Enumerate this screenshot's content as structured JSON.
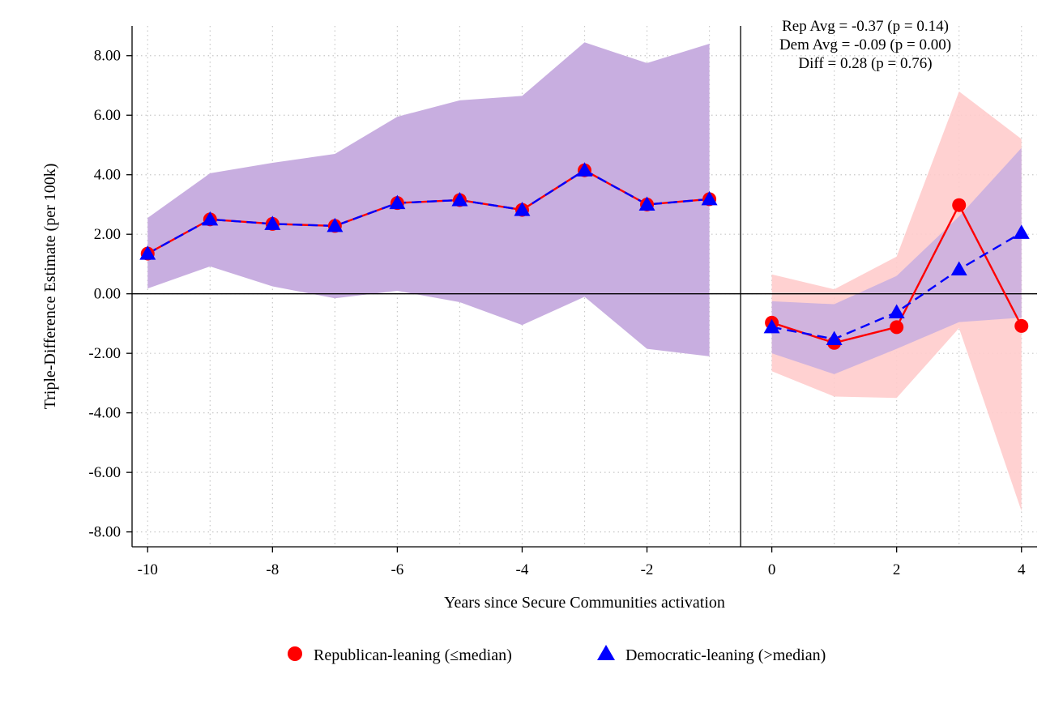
{
  "chart_data": {
    "type": "line",
    "xlabel": "Years since Secure Communities activation",
    "ylabel": "Triple-Difference Estimate (per 100k)",
    "xlim": [
      -10.25,
      4.25
    ],
    "ylim": [
      -8.5,
      9.0
    ],
    "x_ticks": [
      -10,
      -8,
      -6,
      -4,
      -2,
      0,
      2,
      4
    ],
    "x_tick_labels": [
      "-10",
      "-8",
      "-6",
      "-4",
      "-2",
      "0",
      "2",
      "4"
    ],
    "y_ticks": [
      -8,
      -6,
      -4,
      -2,
      0,
      2,
      4,
      6,
      8
    ],
    "y_tick_labels": [
      "-8.00",
      "-6.00",
      "-4.00",
      "-2.00",
      "0.00",
      "2.00",
      "4.00",
      "6.00",
      "8.00"
    ],
    "grid": true,
    "reference_lines": {
      "y": 0,
      "x": -0.5
    },
    "annotations": [
      "Rep Avg = -0.37 (p = 0.14)",
      "Dem Avg = -0.09 (p = 0.00)",
      "Diff = 0.28 (p = 0.76)"
    ],
    "legend_position": "bottom",
    "series": [
      {
        "name": "Republican-leaning (≤median)",
        "color": "#ff0000",
        "marker": "circle",
        "band_color": "#ffcccc",
        "pre": {
          "x": [
            -10,
            -9,
            -8,
            -7,
            -6,
            -5,
            -4,
            -3,
            -2,
            -1
          ],
          "y": [
            1.35,
            2.5,
            2.35,
            2.28,
            3.05,
            3.15,
            2.82,
            4.15,
            3.0,
            3.18
          ]
        },
        "post": {
          "x": [
            0,
            1,
            2,
            3,
            4
          ],
          "y": [
            -0.97,
            -1.65,
            -1.12,
            2.98,
            -1.08
          ],
          "ci_lower": [
            -2.6,
            -3.45,
            -3.5,
            -1.15,
            -7.3
          ],
          "ci_upper": [
            0.65,
            0.15,
            1.25,
            6.8,
            5.2
          ]
        }
      },
      {
        "name": "Democratic-leaning (>median)",
        "color": "#0000ff",
        "marker": "triangle",
        "band_color": "#c8aee0",
        "pre": {
          "x": [
            -10,
            -9,
            -8,
            -7,
            -6,
            -5,
            -4,
            -3,
            -2,
            -1
          ],
          "y": [
            1.35,
            2.5,
            2.35,
            2.28,
            3.05,
            3.15,
            2.82,
            4.15,
            3.0,
            3.18
          ],
          "ci_lower": [
            0.18,
            0.92,
            0.25,
            -0.15,
            0.1,
            -0.28,
            -1.05,
            -0.1,
            -1.85,
            -2.1
          ],
          "ci_upper": [
            2.55,
            4.05,
            4.4,
            4.7,
            5.95,
            6.5,
            6.65,
            8.45,
            7.75,
            8.4
          ]
        },
        "post": {
          "x": [
            0,
            1,
            2,
            3,
            4
          ],
          "y": [
            -1.12,
            -1.52,
            -0.62,
            0.82,
            2.05
          ],
          "ci_lower": [
            -2.0,
            -2.7,
            -1.85,
            -0.95,
            -0.8
          ],
          "ci_upper": [
            -0.25,
            -0.35,
            0.6,
            2.6,
            4.9
          ]
        }
      }
    ]
  }
}
